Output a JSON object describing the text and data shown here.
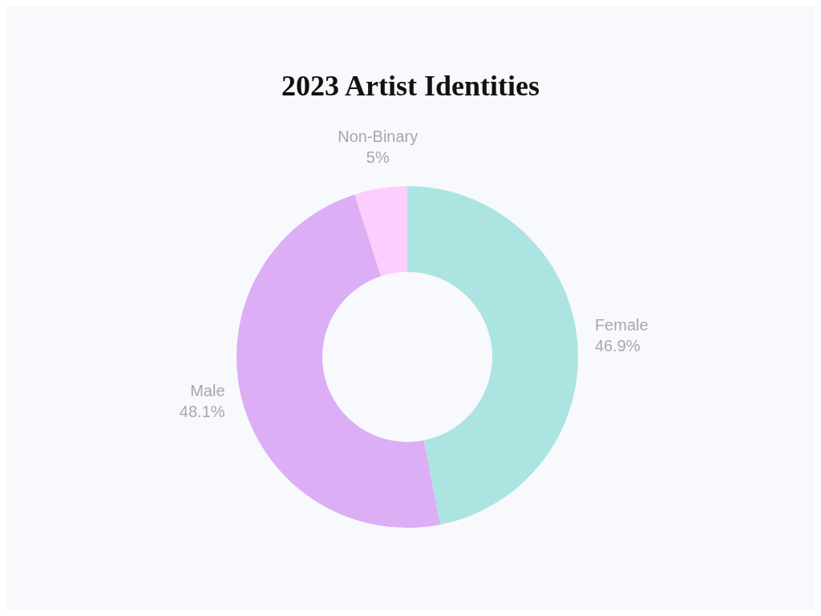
{
  "chart_data": {
    "type": "donut",
    "title": "2023 Artist Identities",
    "categories": [
      "Female",
      "Male",
      "Non-Binary"
    ],
    "values": [
      46.9,
      48.1,
      5
    ],
    "value_labels": [
      "46.9%",
      "48.1%",
      "5%"
    ],
    "colors": [
      "#ace4e2",
      "#dbaef6",
      "#fdcdfd"
    ],
    "legend": false
  }
}
